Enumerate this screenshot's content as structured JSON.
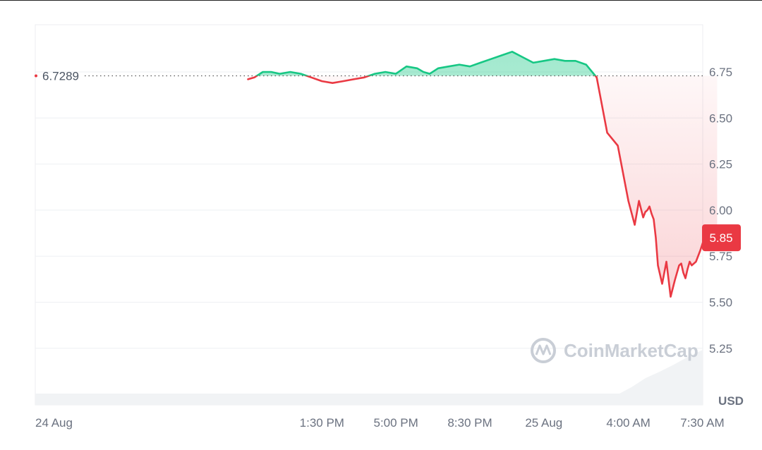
{
  "chart_data": {
    "type": "line",
    "title": "",
    "xlabel": "",
    "ylabel": "",
    "unit_label": "USD",
    "reference_price": 6.7289,
    "reference_label": "6.7289",
    "current_price": 5.85,
    "current_label": "5.85",
    "watermark": "CoinMarketCap",
    "ylim": [
      5.0,
      7.02
    ],
    "grid": true,
    "y_ticks": [
      {
        "value": 6.75,
        "label": "6.75"
      },
      {
        "value": 6.5,
        "label": "6.50"
      },
      {
        "value": 6.25,
        "label": "6.25"
      },
      {
        "value": 6.0,
        "label": "6.00"
      },
      {
        "value": 5.75,
        "label": "5.75"
      },
      {
        "value": 5.5,
        "label": "5.50"
      },
      {
        "value": 5.25,
        "label": "5.25"
      }
    ],
    "x_tick_labels": [
      "24 Aug",
      "1:30 PM",
      "5:00 PM",
      "8:30 PM",
      "25 Aug",
      "4:00 AM",
      "7:30 AM"
    ],
    "x_tick_hours": [
      0,
      13.5,
      17,
      20.5,
      24,
      28,
      31.5
    ],
    "series": [
      {
        "x_hours": [
          10.0,
          10.3,
          10.7,
          11.1,
          11.5,
          12.0,
          12.5,
          13.0,
          13.5,
          14.0,
          14.5,
          15.0,
          15.5,
          16.0,
          16.5,
          17.0,
          17.5,
          18.0,
          18.3,
          18.6,
          19.0,
          19.5,
          20.0,
          20.5,
          21.0,
          21.5,
          22.0,
          22.5,
          23.0,
          23.5,
          24.0,
          24.5,
          25.0,
          25.5,
          26.0,
          26.5,
          27.0,
          27.5,
          28.0,
          28.3,
          28.5,
          28.7,
          28.8,
          28.9,
          29.0,
          29.1,
          29.2,
          29.3,
          29.4,
          29.6,
          29.8,
          30.0,
          30.2,
          30.4,
          30.5,
          30.6,
          30.7,
          30.8,
          30.9,
          31.0,
          31.2,
          31.4,
          31.6,
          31.8,
          32.0,
          32.2
        ],
        "values": [
          6.71,
          6.72,
          6.75,
          6.75,
          6.74,
          6.75,
          6.74,
          6.72,
          6.7,
          6.69,
          6.7,
          6.71,
          6.72,
          6.74,
          6.75,
          6.74,
          6.78,
          6.77,
          6.75,
          6.74,
          6.77,
          6.78,
          6.79,
          6.78,
          6.8,
          6.82,
          6.84,
          6.86,
          6.83,
          6.8,
          6.81,
          6.82,
          6.81,
          6.81,
          6.79,
          6.72,
          6.42,
          6.35,
          6.05,
          5.92,
          6.05,
          5.96,
          5.99,
          6.0,
          6.02,
          5.98,
          5.95,
          5.85,
          5.7,
          5.6,
          5.72,
          5.53,
          5.62,
          5.7,
          5.71,
          5.66,
          5.63,
          5.68,
          5.72,
          5.7,
          5.72,
          5.78,
          5.85,
          5.85,
          5.85,
          5.85
        ],
        "up_color": "#16c784",
        "down_color": "#ea3943"
      }
    ]
  }
}
